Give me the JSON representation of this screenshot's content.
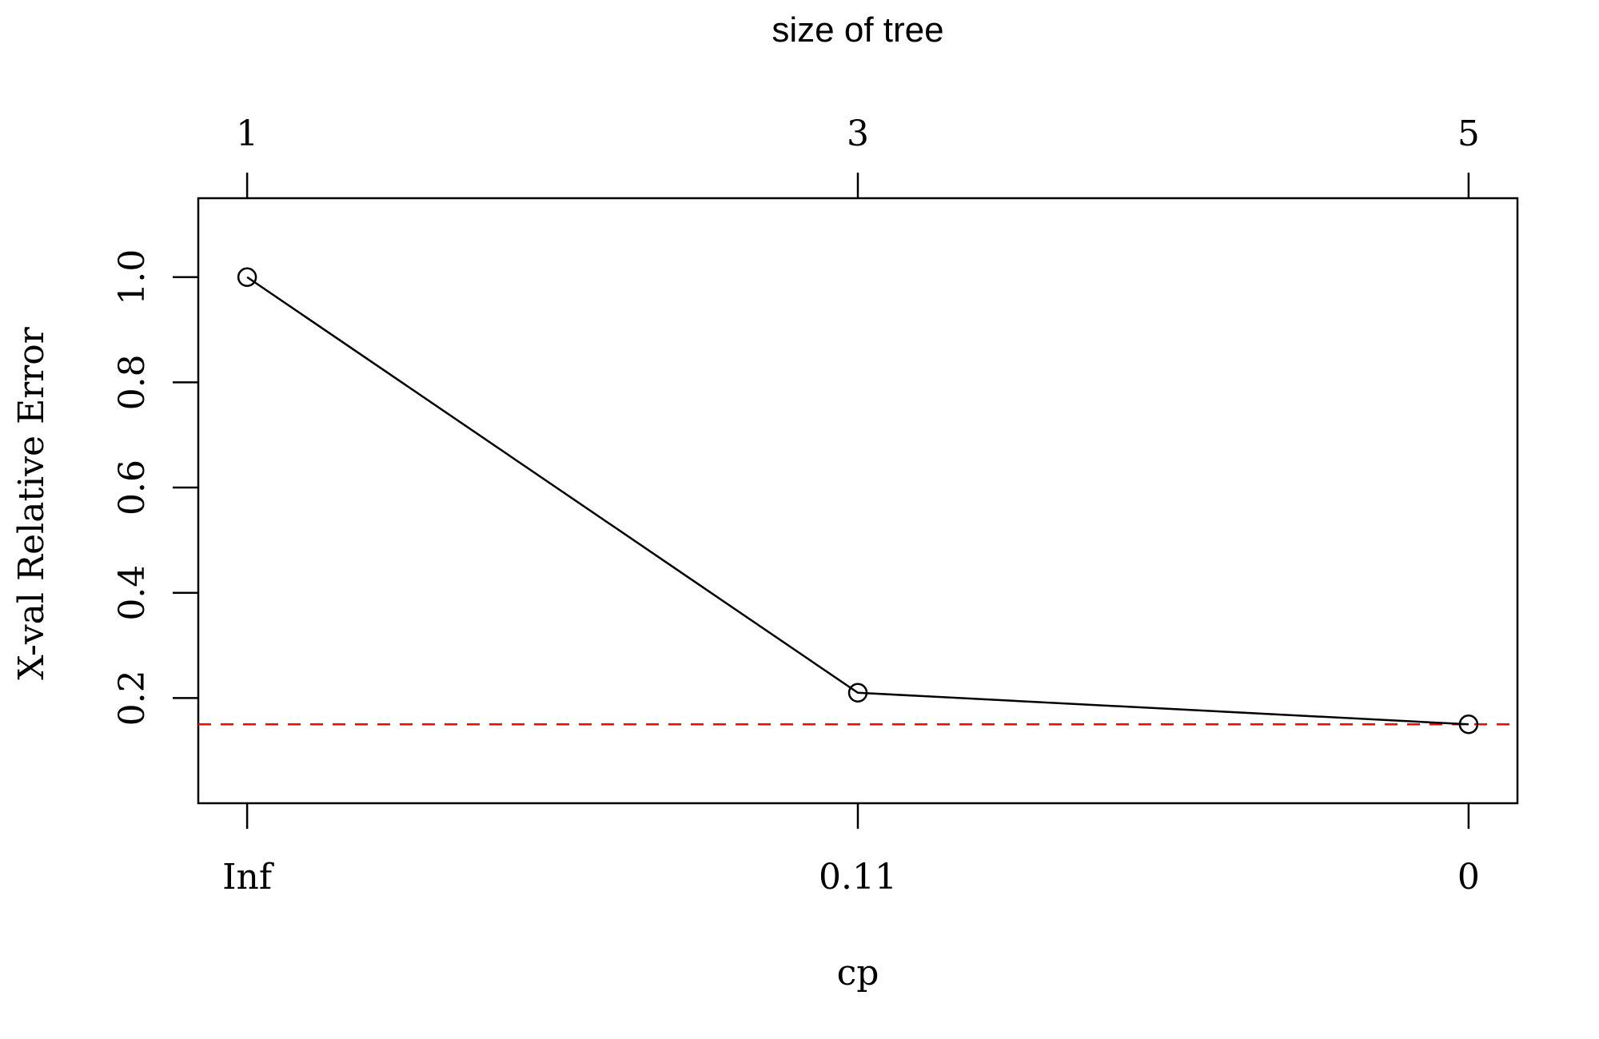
{
  "chart_data": {
    "type": "line",
    "title": "size of tree",
    "xlabel": "cp",
    "ylabel": "X-val Relative Error",
    "x_ticks_bottom": [
      "Inf",
      "0.11",
      "0"
    ],
    "x_ticks_top": [
      "1",
      "3",
      "5"
    ],
    "x_positions": [
      1,
      2,
      3
    ],
    "y_ticks": [
      0.2,
      0.4,
      0.6,
      0.8,
      1.0
    ],
    "y_tick_labels": [
      "0.2",
      "0.4",
      "0.6",
      "0.8",
      "1.0"
    ],
    "ylim": [
      0.0,
      1.15
    ],
    "xlim": [
      0.92,
      3.08
    ],
    "series": [
      {
        "values": [
          1.0,
          0.21,
          0.15
        ]
      }
    ],
    "reference_line": {
      "y": 0.15,
      "color": "#ff0000",
      "style": "dashed"
    },
    "colors": {
      "line": "#000000",
      "points": "#000000",
      "axes": "#000000"
    },
    "grid": false,
    "legend": "none"
  }
}
